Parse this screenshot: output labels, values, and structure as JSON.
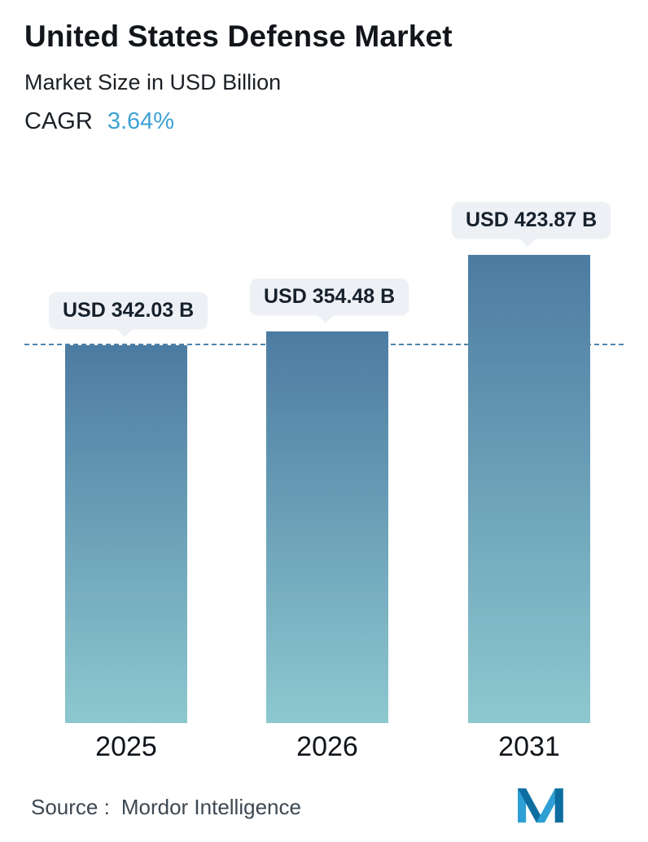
{
  "header": {
    "title": "United States Defense Market",
    "subtitle": "Market Size in USD Billion",
    "cagr_label": "CAGR",
    "cagr_value": "3.64%",
    "cagr_value_color": "#3ea2d4"
  },
  "chart_data": {
    "type": "bar",
    "title": "United States Defense Market",
    "ylabel": "Market Size in USD Billion",
    "categories": [
      "2025",
      "2026",
      "2031"
    ],
    "values": [
      342.03,
      354.48,
      423.87
    ],
    "value_labels": [
      "USD 342.03 B",
      "USD 354.48 B",
      "USD 423.87 B"
    ],
    "ylim": [
      0,
      460
    ],
    "grid": false,
    "legend": false,
    "reference_line": {
      "value": 342.03,
      "style": "dashed",
      "color": "#4e84ad"
    },
    "bar_colors": {
      "top": "#4c7ba2",
      "bottom": "#8dc8cf"
    },
    "callout_bg": "#edf1f5"
  },
  "footer": {
    "source_label": "Source :",
    "source_value": "Mordor Intelligence",
    "logo_colors": {
      "light": "#2e9fd4",
      "dark": "#0e6da0"
    }
  }
}
